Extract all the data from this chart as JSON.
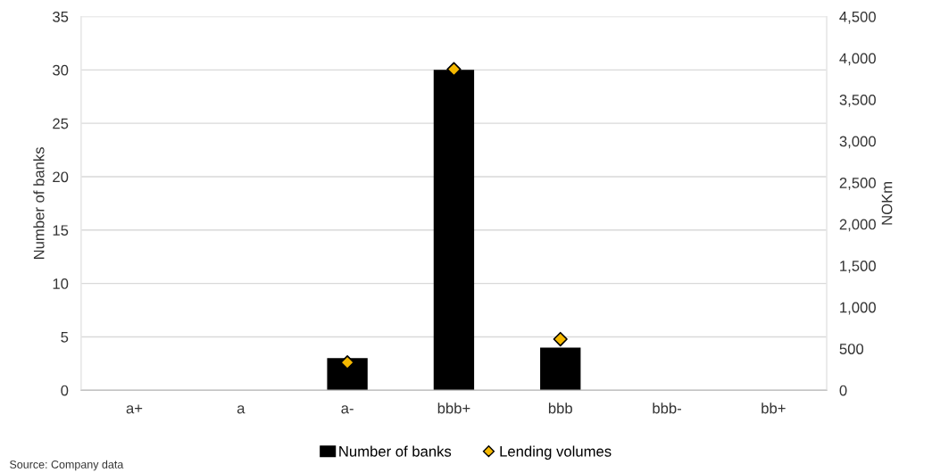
{
  "chart_data": {
    "type": "bar",
    "categories": [
      "a+",
      "a",
      "a-",
      "bbb+",
      "bbb",
      "bbb-",
      "bb+"
    ],
    "series": [
      {
        "name": "Number of banks",
        "color": "#000000",
        "values": [
          0,
          0,
          3,
          30,
          4,
          0,
          0
        ]
      },
      {
        "name": "Lending volumes",
        "color": "#f5b800",
        "type": "scatter",
        "axis": "y2",
        "marker": "diamond",
        "values": [
          null,
          null,
          335,
          3865,
          615,
          null,
          null
        ]
      }
    ],
    "ylabel": "Number of banks",
    "y2label": "NOKm",
    "ylim": [
      0,
      35
    ],
    "yticks": [
      0,
      5,
      10,
      15,
      20,
      25,
      30,
      35
    ],
    "y2lim": [
      0,
      4500
    ],
    "y2ticks": [
      {
        "value": 0,
        "label": "0"
      },
      {
        "value": 500,
        "label": "500"
      },
      {
        "value": 1000,
        "label": "1,000"
      },
      {
        "value": 1500,
        "label": "1,500"
      },
      {
        "value": 2000,
        "label": "2,000"
      },
      {
        "value": 2500,
        "label": "2,500"
      },
      {
        "value": 3000,
        "label": "3,000"
      },
      {
        "value": 3500,
        "label": "3,500"
      },
      {
        "value": 4000,
        "label": "4,000"
      },
      {
        "value": 4500,
        "label": "4,500"
      }
    ],
    "grid": "y",
    "legend": "bottom",
    "annotations": [
      "Source: Company data"
    ]
  }
}
